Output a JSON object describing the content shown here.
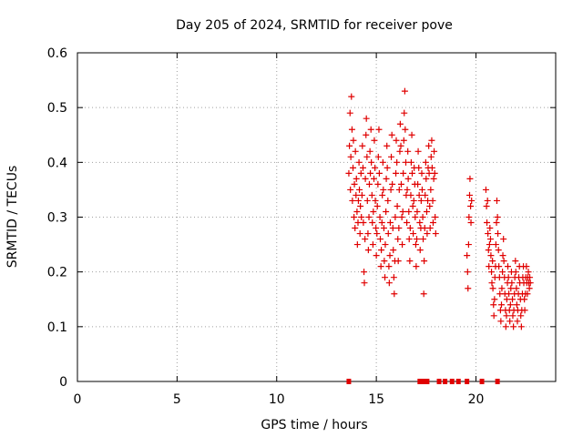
{
  "chart_data": {
    "type": "scatter",
    "title": "Day 205 of 2024, SRMTID for receiver pove",
    "xlabel": "GPS time / hours",
    "ylabel": "SRMTID / TECUs",
    "xlim": [
      0,
      24
    ],
    "ylim": [
      0,
      0.6
    ],
    "xticks": [
      0,
      5,
      10,
      15,
      20
    ],
    "xtick_labels": [
      "0",
      "5",
      "10",
      "15",
      "20"
    ],
    "yticks": [
      0,
      0.1,
      0.2,
      0.3,
      0.4,
      0.5,
      0.6
    ],
    "ytick_labels": [
      "0",
      "0.1",
      "0.2",
      "0.3",
      "0.4",
      "0.5",
      "0.6"
    ],
    "grid": true,
    "marker": "plus",
    "color": "#e00000",
    "series": [
      {
        "points": [
          [
            13.62,
            0.38
          ],
          [
            13.65,
            0.43
          ],
          [
            13.68,
            0.49
          ],
          [
            13.7,
            0.35
          ],
          [
            13.72,
            0.41
          ],
          [
            13.75,
            0.52
          ],
          [
            13.78,
            0.46
          ],
          [
            13.8,
            0.33
          ],
          [
            13.83,
            0.39
          ],
          [
            13.85,
            0.44
          ],
          [
            13.88,
            0.3
          ],
          [
            13.9,
            0.36
          ],
          [
            13.93,
            0.28
          ],
          [
            13.95,
            0.42
          ],
          [
            13.98,
            0.34
          ],
          [
            14.0,
            0.37
          ],
          [
            14.03,
            0.31
          ],
          [
            14.05,
            0.25
          ],
          [
            14.08,
            0.29
          ],
          [
            14.1,
            0.33
          ],
          [
            14.13,
            0.4
          ],
          [
            14.15,
            0.35
          ],
          [
            14.18,
            0.27
          ],
          [
            14.2,
            0.32
          ],
          [
            14.23,
            0.38
          ],
          [
            14.25,
            0.3
          ],
          [
            14.28,
            0.34
          ],
          [
            14.3,
            0.43
          ],
          [
            14.33,
            0.39
          ],
          [
            14.35,
            0.29
          ],
          [
            14.38,
            0.2
          ],
          [
            14.4,
            0.18
          ],
          [
            14.43,
            0.26
          ],
          [
            14.45,
            0.37
          ],
          [
            14.48,
            0.45
          ],
          [
            14.5,
            0.48
          ],
          [
            14.53,
            0.41
          ],
          [
            14.55,
            0.33
          ],
          [
            14.58,
            0.27
          ],
          [
            14.6,
            0.24
          ],
          [
            14.63,
            0.3
          ],
          [
            14.65,
            0.36
          ],
          [
            14.68,
            0.42
          ],
          [
            14.7,
            0.38
          ],
          [
            14.73,
            0.46
          ],
          [
            14.75,
            0.4
          ],
          [
            14.78,
            0.34
          ],
          [
            14.8,
            0.29
          ],
          [
            14.83,
            0.25
          ],
          [
            14.85,
            0.31
          ],
          [
            14.88,
            0.37
          ],
          [
            14.9,
            0.44
          ],
          [
            14.93,
            0.39
          ],
          [
            14.95,
            0.33
          ],
          [
            14.98,
            0.28
          ],
          [
            15.0,
            0.23
          ],
          [
            15.03,
            0.27
          ],
          [
            15.05,
            0.32
          ],
          [
            15.08,
            0.36
          ],
          [
            15.1,
            0.41
          ],
          [
            15.13,
            0.46
          ],
          [
            15.15,
            0.38
          ],
          [
            15.18,
            0.3
          ],
          [
            15.2,
            0.26
          ],
          [
            15.23,
            0.21
          ],
          [
            15.25,
            0.24
          ],
          [
            15.28,
            0.29
          ],
          [
            15.3,
            0.34
          ],
          [
            15.33,
            0.4
          ],
          [
            15.35,
            0.35
          ],
          [
            15.38,
            0.28
          ],
          [
            15.4,
            0.22
          ],
          [
            15.43,
            0.19
          ],
          [
            15.45,
            0.25
          ],
          [
            15.48,
            0.31
          ],
          [
            15.5,
            0.37
          ],
          [
            15.53,
            0.43
          ],
          [
            15.55,
            0.39
          ],
          [
            15.58,
            0.33
          ],
          [
            15.6,
            0.27
          ],
          [
            15.63,
            0.21
          ],
          [
            15.65,
            0.18
          ],
          [
            15.68,
            0.23
          ],
          [
            15.7,
            0.29
          ],
          [
            15.73,
            0.35
          ],
          [
            15.75,
            0.41
          ],
          [
            15.78,
            0.45
          ],
          [
            15.8,
            0.36
          ],
          [
            15.83,
            0.28
          ],
          [
            15.85,
            0.24
          ],
          [
            15.88,
            0.19
          ],
          [
            15.9,
            0.16
          ],
          [
            15.93,
            0.22
          ],
          [
            15.95,
            0.3
          ],
          [
            15.98,
            0.38
          ],
          [
            16.0,
            0.44
          ],
          [
            16.03,
            0.4
          ],
          [
            16.05,
            0.32
          ],
          [
            16.08,
            0.26
          ],
          [
            16.1,
            0.22
          ],
          [
            16.13,
            0.28
          ],
          [
            16.15,
            0.35
          ],
          [
            16.18,
            0.42
          ],
          [
            16.2,
            0.47
          ],
          [
            16.23,
            0.43
          ],
          [
            16.25,
            0.36
          ],
          [
            16.28,
            0.3
          ],
          [
            16.3,
            0.25
          ],
          [
            16.33,
            0.31
          ],
          [
            16.35,
            0.38
          ],
          [
            16.38,
            0.44
          ],
          [
            16.4,
            0.49
          ],
          [
            16.43,
            0.53
          ],
          [
            16.45,
            0.46
          ],
          [
            16.48,
            0.4
          ],
          [
            16.5,
            0.34
          ],
          [
            16.53,
            0.29
          ],
          [
            16.55,
            0.35
          ],
          [
            16.58,
            0.42
          ],
          [
            16.6,
            0.37
          ],
          [
            16.63,
            0.31
          ],
          [
            16.65,
            0.26
          ],
          [
            16.68,
            0.22
          ],
          [
            16.7,
            0.28
          ],
          [
            16.73,
            0.34
          ],
          [
            16.75,
            0.4
          ],
          [
            16.78,
            0.45
          ],
          [
            16.8,
            0.38
          ],
          [
            16.83,
            0.32
          ],
          [
            16.85,
            0.27
          ],
          [
            16.88,
            0.33
          ],
          [
            16.9,
            0.39
          ],
          [
            16.93,
            0.36
          ],
          [
            16.95,
            0.3
          ],
          [
            16.98,
            0.25
          ],
          [
            17.0,
            0.21
          ],
          [
            17.03,
            0.26
          ],
          [
            17.05,
            0.31
          ],
          [
            17.08,
            0.36
          ],
          [
            17.1,
            0.42
          ],
          [
            17.13,
            0.39
          ],
          [
            17.15,
            0.34
          ],
          [
            17.18,
            0.29
          ],
          [
            17.2,
            0.24
          ],
          [
            17.23,
            0.28
          ],
          [
            17.25,
            0.33
          ],
          [
            17.28,
            0.38
          ],
          [
            17.3,
            0.35
          ],
          [
            17.33,
            0.3
          ],
          [
            17.35,
            0.26
          ],
          [
            17.38,
            0.16
          ],
          [
            17.4,
            0.22
          ],
          [
            17.43,
            0.28
          ],
          [
            17.45,
            0.34
          ],
          [
            17.48,
            0.4
          ],
          [
            17.5,
            0.37
          ],
          [
            17.53,
            0.31
          ],
          [
            17.55,
            0.27
          ],
          [
            17.58,
            0.33
          ],
          [
            17.6,
            0.39
          ],
          [
            17.63,
            0.43
          ],
          [
            17.65,
            0.38
          ],
          [
            17.68,
            0.32
          ],
          [
            17.7,
            0.28
          ],
          [
            17.73,
            0.35
          ],
          [
            17.75,
            0.41
          ],
          [
            17.78,
            0.44
          ],
          [
            17.8,
            0.39
          ],
          [
            17.83,
            0.33
          ],
          [
            17.85,
            0.29
          ],
          [
            17.88,
            0.37
          ],
          [
            17.9,
            0.42
          ],
          [
            17.93,
            0.38
          ],
          [
            17.95,
            0.3
          ],
          [
            17.98,
            0.27
          ],
          [
            19.55,
            0.23
          ],
          [
            19.58,
            0.2
          ],
          [
            19.6,
            0.17
          ],
          [
            19.63,
            0.25
          ],
          [
            19.65,
            0.3
          ],
          [
            19.68,
            0.34
          ],
          [
            19.7,
            0.37
          ],
          [
            19.73,
            0.32
          ],
          [
            19.75,
            0.29
          ],
          [
            19.78,
            0.33
          ],
          [
            20.5,
            0.35
          ],
          [
            20.53,
            0.32
          ],
          [
            20.55,
            0.29
          ],
          [
            20.58,
            0.33
          ],
          [
            20.6,
            0.27
          ],
          [
            20.63,
            0.24
          ],
          [
            20.65,
            0.21
          ],
          [
            20.68,
            0.25
          ],
          [
            20.7,
            0.28
          ],
          [
            20.73,
            0.26
          ],
          [
            20.75,
            0.23
          ],
          [
            20.78,
            0.2
          ],
          [
            20.8,
            0.18
          ],
          [
            20.83,
            0.22
          ],
          [
            20.85,
            0.17
          ],
          [
            20.88,
            0.14
          ],
          [
            20.9,
            0.12
          ],
          [
            20.93,
            0.15
          ],
          [
            20.95,
            0.19
          ],
          [
            20.98,
            0.21
          ],
          [
            21.0,
            0.25
          ],
          [
            21.03,
            0.29
          ],
          [
            21.05,
            0.33
          ],
          [
            21.08,
            0.3
          ],
          [
            21.1,
            0.27
          ],
          [
            21.13,
            0.24
          ],
          [
            21.15,
            0.21
          ],
          [
            21.18,
            0.19
          ],
          [
            21.2,
            0.16
          ],
          [
            21.23,
            0.13
          ],
          [
            21.25,
            0.11
          ],
          [
            21.28,
            0.14
          ],
          [
            21.3,
            0.17
          ],
          [
            21.33,
            0.2
          ],
          [
            21.35,
            0.23
          ],
          [
            21.38,
            0.26
          ],
          [
            21.4,
            0.22
          ],
          [
            21.43,
            0.19
          ],
          [
            21.45,
            0.16
          ],
          [
            21.48,
            0.13
          ],
          [
            21.5,
            0.1
          ],
          [
            21.53,
            0.12
          ],
          [
            21.55,
            0.15
          ],
          [
            21.58,
            0.18
          ],
          [
            21.6,
            0.21
          ],
          [
            21.63,
            0.19
          ],
          [
            21.65,
            0.16
          ],
          [
            21.68,
            0.13
          ],
          [
            21.7,
            0.11
          ],
          [
            21.73,
            0.14
          ],
          [
            21.75,
            0.17
          ],
          [
            21.78,
            0.2
          ],
          [
            21.8,
            0.18
          ],
          [
            21.83,
            0.15
          ],
          [
            21.85,
            0.12
          ],
          [
            21.88,
            0.1
          ],
          [
            21.9,
            0.13
          ],
          [
            21.93,
            0.16
          ],
          [
            21.95,
            0.19
          ],
          [
            21.98,
            0.22
          ],
          [
            22.0,
            0.2
          ],
          [
            22.03,
            0.17
          ],
          [
            22.05,
            0.14
          ],
          [
            22.08,
            0.11
          ],
          [
            22.1,
            0.13
          ],
          [
            22.13,
            0.16
          ],
          [
            22.15,
            0.19
          ],
          [
            22.18,
            0.21
          ],
          [
            22.2,
            0.18
          ],
          [
            22.23,
            0.15
          ],
          [
            22.25,
            0.12
          ],
          [
            22.28,
            0.1
          ],
          [
            22.3,
            0.13
          ],
          [
            22.33,
            0.16
          ],
          [
            22.35,
            0.19
          ],
          [
            22.38,
            0.21
          ],
          [
            22.4,
            0.18
          ],
          [
            22.43,
            0.15
          ],
          [
            22.45,
            0.13
          ],
          [
            22.48,
            0.16
          ],
          [
            22.5,
            0.19
          ],
          [
            22.53,
            0.21
          ],
          [
            22.55,
            0.18
          ],
          [
            22.58,
            0.16
          ],
          [
            22.6,
            0.19
          ],
          [
            22.63,
            0.2
          ],
          [
            22.65,
            0.18
          ],
          [
            22.68,
            0.17
          ],
          [
            22.7,
            0.19
          ],
          [
            22.73,
            0.18
          ]
        ]
      }
    ],
    "zero_markers_x": [
      13.62,
      17.18,
      17.38,
      17.55,
      18.15,
      18.45,
      18.8,
      19.12,
      19.55,
      20.3,
      21.08
    ]
  }
}
